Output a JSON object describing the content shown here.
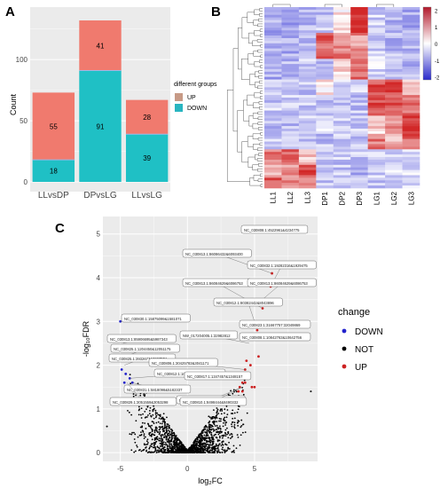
{
  "panels": {
    "A": {
      "label": "A",
      "ylabel": "Count",
      "legend_title": "different groups",
      "legend_items": [
        "UP",
        "DOWN"
      ],
      "colors": {
        "UP": "#F07A6E",
        "DOWN": "#1FC0C5",
        "outline_up": "#C79A86",
        "outline_down": "#A8C8E0"
      }
    },
    "B": {
      "label": "B",
      "columns": [
        "LL1",
        "LL2",
        "LL3",
        "DP1",
        "DP2",
        "DP3",
        "LG1",
        "LG2",
        "LG3"
      ],
      "colorbar_ticks": [
        "2",
        "1",
        "0",
        "-1",
        "-2"
      ]
    },
    "C": {
      "label": "C",
      "xlabel": "log₂FC",
      "ylabel": "-log₁₀FDR",
      "legend_title": "change",
      "legend_items": [
        {
          "label": "DOWN",
          "color": "#2222CC"
        },
        {
          "label": "NOT",
          "color": "#000000"
        },
        {
          "label": "UP",
          "color": "#CC2222"
        }
      ],
      "annotations": [
        "NC_030808.1:4522961&4234775",
        "NC_030813.1:86086432&6093400",
        "NC_030832.1:19282316&1929475",
        "NC_030813.1:86084629&6086753",
        "NC_030813.1:86084629&6086753",
        "NC_030812.1:80382442&8043896",
        "NC_030830.1:15875099&1581071",
        "NC_030823.1:31667757:32049869",
        "NC_030813.1:85906695&5987343",
        "NW_017204005.1:32982812",
        "NC_030808.1:10842763&10642756",
        "NC_030825.1:1204450&12051175",
        "NC_030825.1:3932677&3267551",
        "NC_030806.1:30425783&3041171",
        "NC_030812.1:10278342&10278381",
        "NC_030817.1:1347457&1348157",
        "NC_030831.1:5818098&5182337",
        "NC_030829.1:3051559&3053298",
        "NC_030814.1:87446765&7450101",
        "NC_030810.1:8498444&8490332"
      ]
    }
  },
  "chart_data": [
    {
      "type": "bar",
      "panel": "A",
      "categories": [
        "LLvsDP",
        "DPvsLG",
        "LLvsLG"
      ],
      "series": [
        {
          "name": "DOWN",
          "values": [
            18,
            91,
            39
          ]
        },
        {
          "name": "UP",
          "values": [
            55,
            41,
            28
          ]
        }
      ],
      "stacked": true,
      "ylabel": "Count",
      "yticks": [
        0,
        50,
        100
      ],
      "ylim": [
        0,
        140
      ],
      "legend_title": "different groups",
      "legend_position": "right"
    },
    {
      "type": "heatmap",
      "panel": "B",
      "columns": [
        "LL1",
        "LL2",
        "LL3",
        "DP1",
        "DP2",
        "DP3",
        "LG1",
        "LG2",
        "LG3"
      ],
      "row_blocks": [
        {
          "rows": 10,
          "values": [
            -0.8,
            -0.9,
            -0.7,
            -0.6,
            0.2,
            2.0,
            -0.5,
            -0.8,
            -0.9
          ]
        },
        {
          "rows": 10,
          "values": [
            -0.7,
            -0.8,
            -0.7,
            1.5,
            1.2,
            1.0,
            -0.5,
            -0.7,
            -0.8
          ]
        },
        {
          "rows": 8,
          "values": [
            -0.8,
            -0.7,
            -0.6,
            -0.6,
            0.4,
            1.5,
            -0.4,
            -0.6,
            -0.7
          ]
        },
        {
          "rows": 6,
          "values": [
            -0.6,
            -0.7,
            -0.6,
            0.2,
            -0.4,
            -0.5,
            1.6,
            1.8,
            0.6
          ]
        },
        {
          "rows": 8,
          "values": [
            -0.5,
            -0.6,
            -0.5,
            -0.5,
            -0.5,
            -0.6,
            1.7,
            1.6,
            1.4
          ]
        },
        {
          "rows": 7,
          "values": [
            -0.6,
            -0.6,
            -0.5,
            -0.4,
            -0.5,
            -0.5,
            0.4,
            1.1,
            1.8
          ]
        },
        {
          "rows": 6,
          "values": [
            -0.5,
            -0.5,
            -0.5,
            -0.6,
            -0.6,
            -0.6,
            1.2,
            0.8,
            1.5
          ]
        },
        {
          "rows": 6,
          "values": [
            1.2,
            1.6,
            0.6,
            -0.6,
            -0.6,
            -0.6,
            -0.4,
            -0.5,
            -0.5
          ]
        },
        {
          "rows": 5,
          "values": [
            0.5,
            1.0,
            1.7,
            -0.7,
            -0.6,
            -0.7,
            -0.5,
            -0.4,
            -0.4
          ]
        },
        {
          "rows": 4,
          "values": [
            1.6,
            1.2,
            1.3,
            -0.6,
            -0.6,
            -0.6,
            -0.5,
            -0.5,
            -0.5
          ]
        }
      ],
      "colorbar": {
        "min": -2,
        "max": 2
      }
    },
    {
      "type": "scatter",
      "panel": "C",
      "xlabel": "log₂FC",
      "ylabel": "-log₁₀FDR",
      "xticks": [
        -5,
        0,
        5
      ],
      "yticks": [
        0,
        1,
        2,
        3,
        4,
        5
      ],
      "xlim": [
        -6.3,
        9.7
      ],
      "ylim": [
        -0.2,
        5.4
      ],
      "series": [
        {
          "name": "DOWN",
          "x": [
            -5.0,
            -4.9,
            -4.7,
            -4.6,
            -4.3,
            -4.1
          ],
          "y": [
            3.0,
            1.9,
            1.6,
            1.8,
            1.7,
            1.6
          ]
        },
        {
          "name": "UP",
          "x": [
            6.9,
            6.3,
            6.2,
            5.6,
            5.2,
            4.9,
            4.6,
            4.3,
            4.2,
            4.1,
            4.4,
            4.5,
            4.7,
            5.0,
            3.9,
            4.0,
            4.3,
            3.8,
            4.1,
            6.8,
            5.3,
            4.8
          ],
          "y": [
            5.1,
            4.1,
            3.8,
            3.3,
            2.8,
            2.6,
            2.9,
            1.9,
            1.7,
            1.6,
            2.1,
            1.8,
            2.0,
            1.5,
            1.5,
            1.7,
            1.6,
            1.4,
            1.4,
            2.9,
            2.2,
            1.5
          ]
        }
      ]
    }
  ]
}
